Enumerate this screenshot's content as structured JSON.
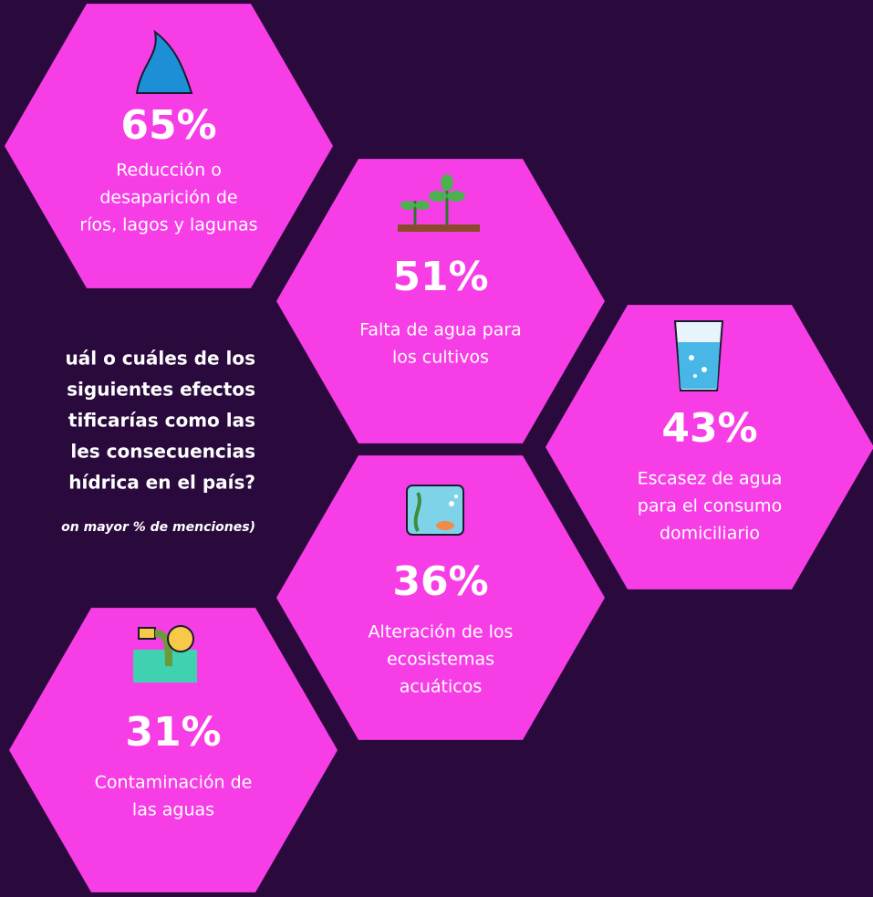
{
  "question": {
    "lines": [
      "uál o cuáles de los",
      "siguientes efectos",
      "tificarías como las",
      "les consecuencias",
      "hídrica en el país?"
    ],
    "note": "on mayor % de menciones)"
  },
  "items": [
    {
      "value": "65%",
      "label": [
        "Reducción o",
        "desaparición de",
        "ríos, lagos y lagunas"
      ]
    },
    {
      "value": "51%",
      "label": [
        "Falta de agua para",
        "los cultivos"
      ]
    },
    {
      "value": "43%",
      "label": [
        "Escasez de agua",
        "para el consumo",
        "domiciliario"
      ]
    },
    {
      "value": "36%",
      "label": [
        "Alteración de los",
        "ecosistemas",
        "acuáticos"
      ]
    },
    {
      "value": "31%",
      "label": [
        "Contaminación de",
        "las aguas"
      ]
    }
  ]
}
